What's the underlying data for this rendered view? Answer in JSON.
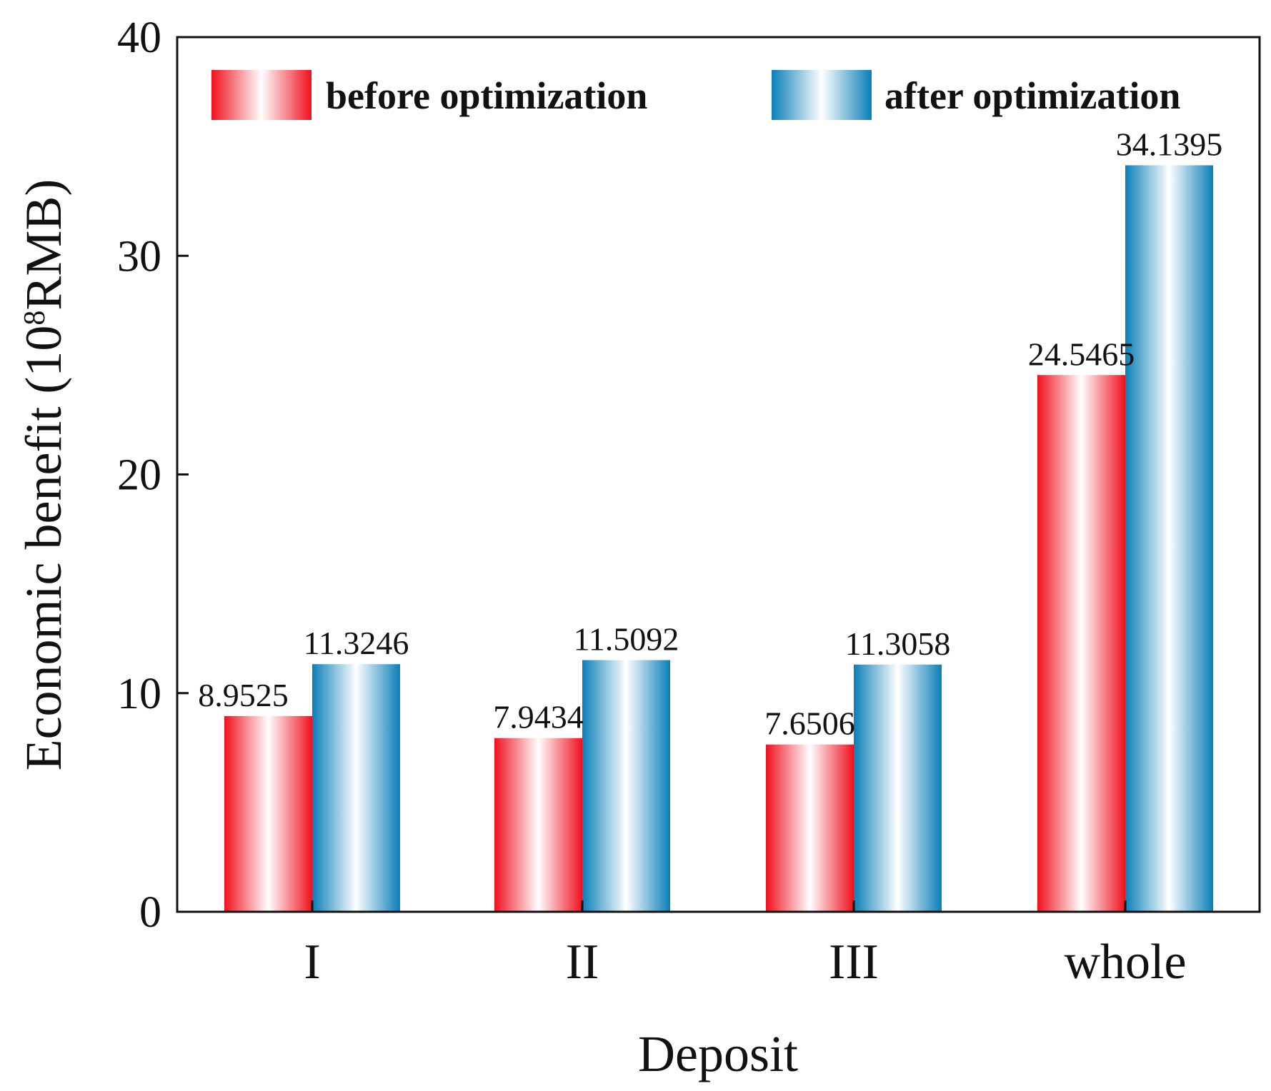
{
  "chart_data": {
    "type": "bar",
    "title": "",
    "xlabel": "Deposit",
    "ylabel": {
      "prefix": "Economic benefit (10",
      "superscript": "8",
      "suffix": "RMB)"
    },
    "ylim": [
      0,
      40
    ],
    "yticks": [
      0,
      10,
      20,
      30,
      40
    ],
    "grid": false,
    "legend_position": "top",
    "categories": [
      "I",
      "II",
      "III",
      "whole"
    ],
    "series": [
      {
        "name": "before optimization",
        "values": [
          8.9525,
          7.9434,
          7.6506,
          24.5465
        ],
        "labels": [
          "8.9525",
          "7.9434",
          "7.6506",
          "24.5465"
        ],
        "color": "#f0101e"
      },
      {
        "name": "after optimization",
        "values": [
          11.3246,
          11.5092,
          11.3058,
          34.1395
        ],
        "labels": [
          "11.3246",
          "11.5092",
          "11.3058",
          "34.1395"
        ],
        "color": "#0a7fb8"
      }
    ]
  }
}
